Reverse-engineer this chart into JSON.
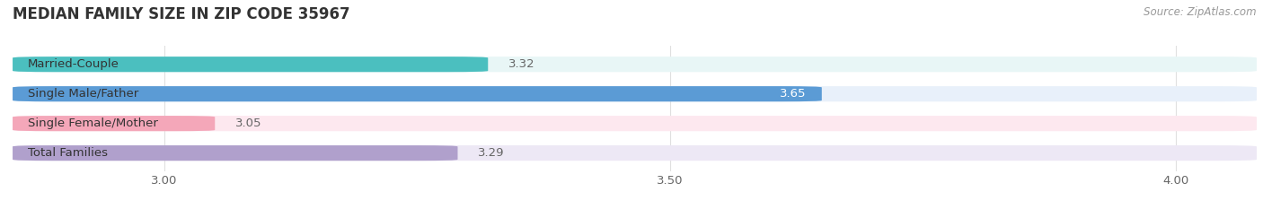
{
  "title": "MEDIAN FAMILY SIZE IN ZIP CODE 35967",
  "source": "Source: ZipAtlas.com",
  "categories": [
    "Married-Couple",
    "Single Male/Father",
    "Single Female/Mother",
    "Total Families"
  ],
  "values": [
    3.32,
    3.65,
    3.05,
    3.29
  ],
  "bar_colors": [
    "#4BBFBF",
    "#5B9BD5",
    "#F4A7B9",
    "#B0A0CC"
  ],
  "bar_bg_colors": [
    "#E8F6F6",
    "#E8F0FA",
    "#FDE8EF",
    "#EDE8F5"
  ],
  "xlim": [
    2.85,
    4.08
  ],
  "xticks": [
    3.0,
    3.5,
    4.0
  ],
  "xtick_labels": [
    "3.00",
    "3.50",
    "4.00"
  ],
  "label_color_inside": "#ffffff",
  "label_color_outside": "#666666",
  "title_fontsize": 12,
  "tick_fontsize": 9.5,
  "bar_label_fontsize": 9.5,
  "category_fontsize": 9.5,
  "bar_height": 0.52,
  "background_color": "#ffffff",
  "grid_color": "#e0e0e0",
  "inside_threshold": 3.45
}
